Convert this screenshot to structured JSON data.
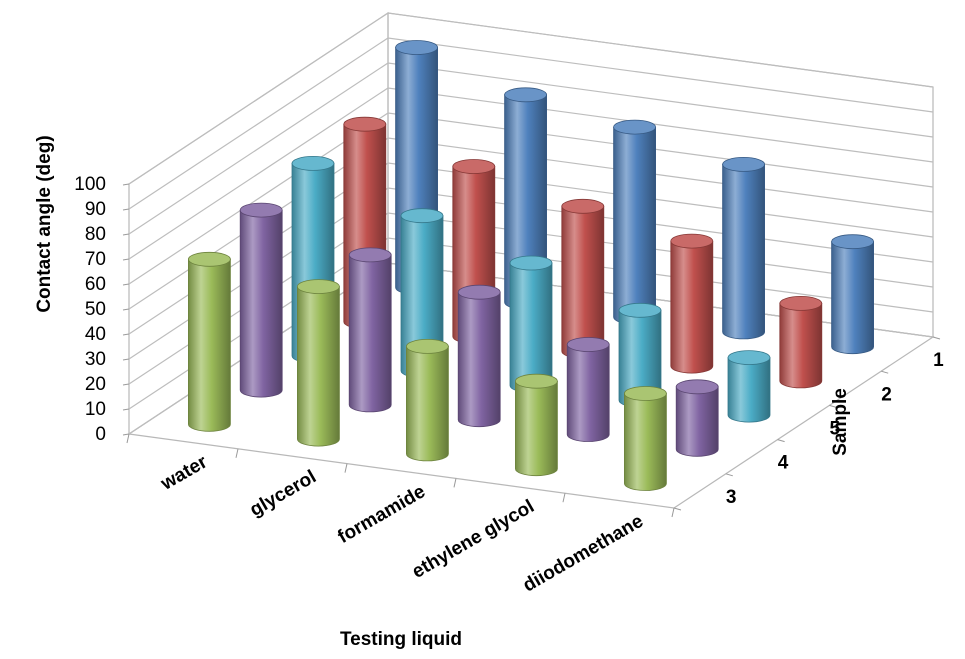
{
  "chart_data": {
    "type": "bar",
    "style": "3d-cylinder",
    "xlabel": "Testing liquid",
    "ylabel": "Contact angle (deg)",
    "zlabel": "Sample",
    "categories": [
      "water",
      "glycerol",
      "formamide",
      "ethylene glycol",
      "diiodomethane"
    ],
    "y_ticks": [
      "0",
      "10",
      "20",
      "30",
      "40",
      "50",
      "60",
      "70",
      "80",
      "90",
      "100"
    ],
    "ylim": [
      0,
      100
    ],
    "grid": true,
    "series": [
      {
        "name": "1",
        "color": "#4f81bd",
        "values": [
          96,
          83,
          76,
          67,
          42
        ]
      },
      {
        "name": "2",
        "color": "#c0504d",
        "values": [
          79,
          68,
          58,
          50,
          31
        ]
      },
      {
        "name": "5",
        "color": "#4bacc6",
        "values": [
          77,
          62,
          49,
          36,
          23
        ]
      },
      {
        "name": "4",
        "color": "#8064a2",
        "values": [
          72,
          60,
          51,
          36,
          25
        ]
      },
      {
        "name": "3",
        "color": "#9bbb59",
        "values": [
          66,
          61,
          43,
          35,
          36
        ]
      }
    ]
  }
}
